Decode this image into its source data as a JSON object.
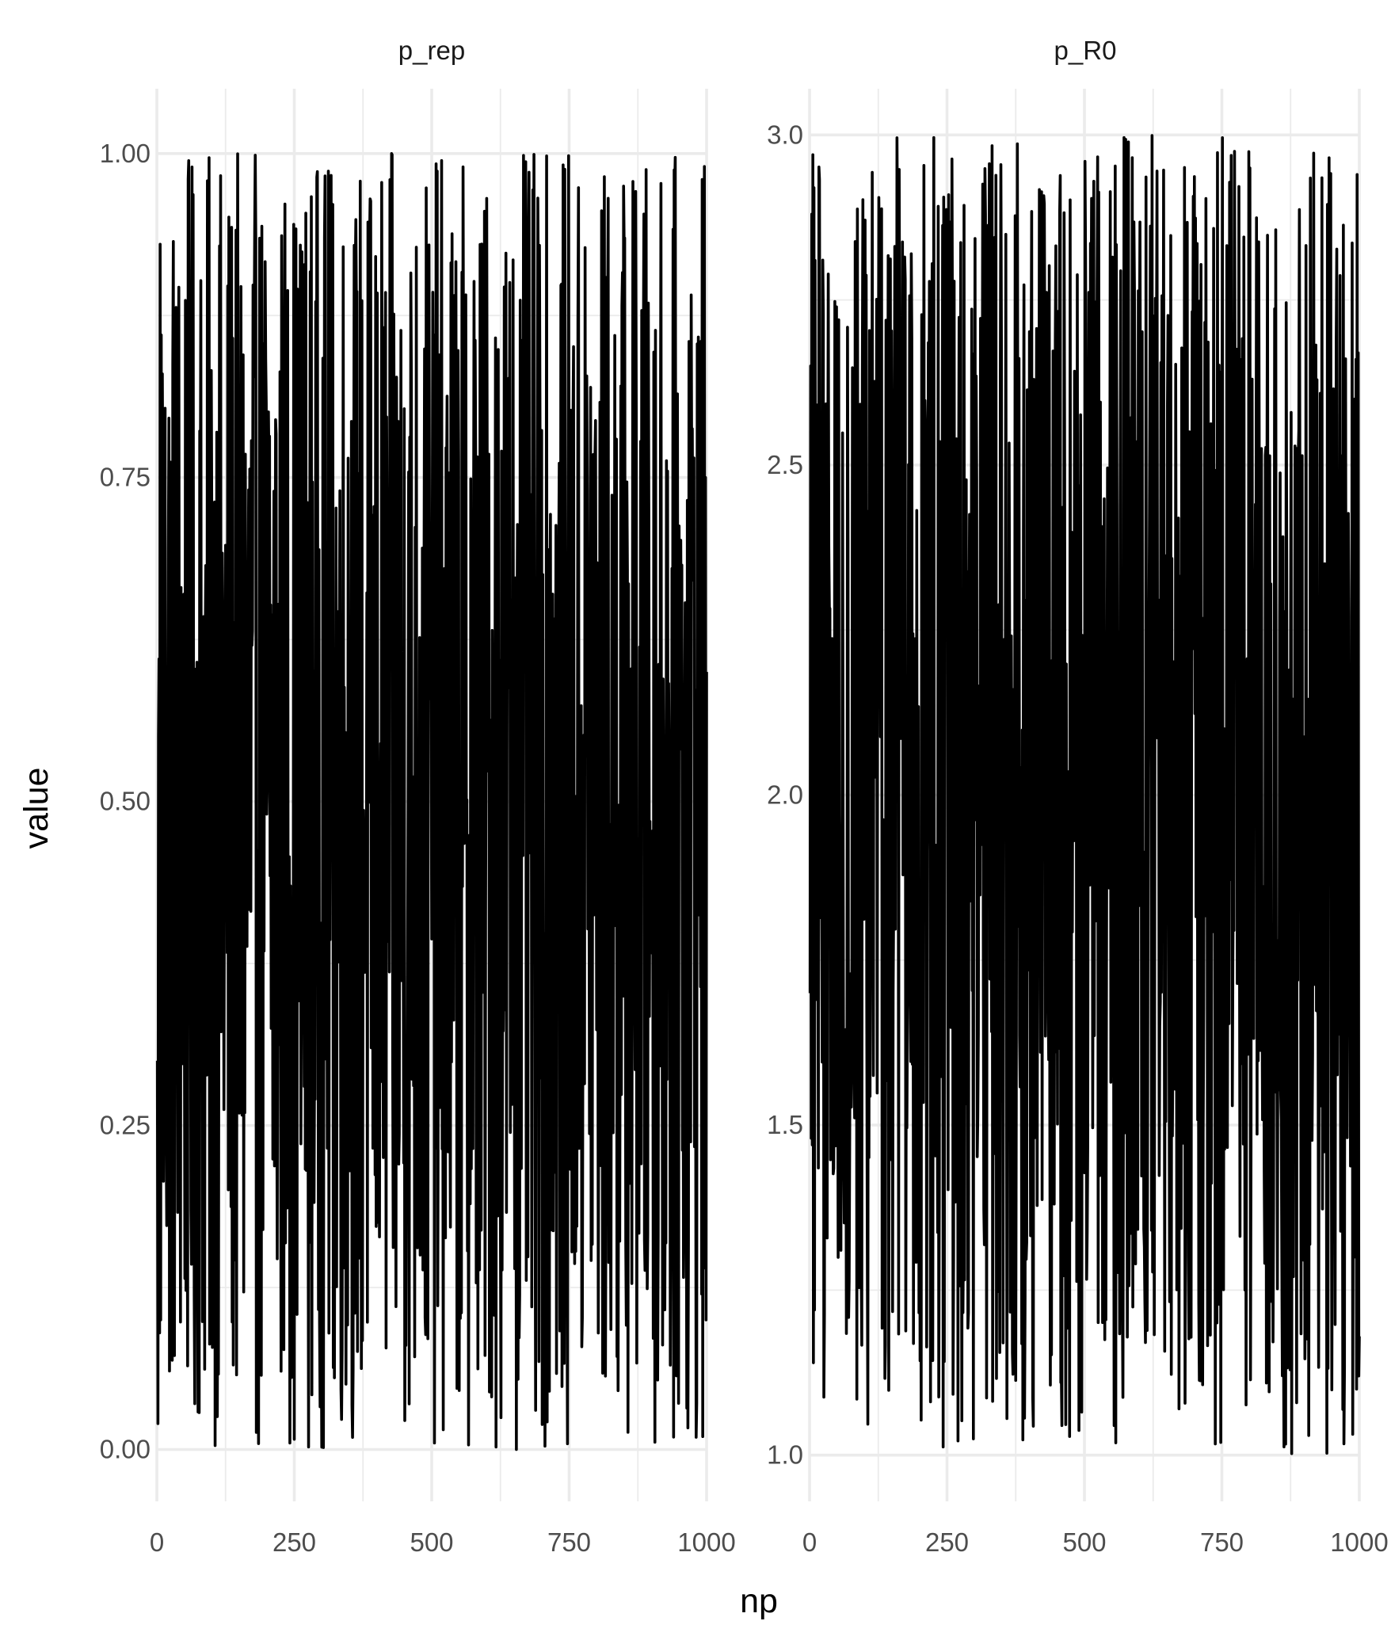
{
  "chart_data": {
    "type": "line",
    "xlabel": "np",
    "ylabel": "value",
    "grid": true,
    "legend": "none",
    "panels": [
      {
        "title": "p_rep",
        "xlim": [
          0,
          1000
        ],
        "ylim": [
          -0.04,
          1.05
        ],
        "xticks": [
          0,
          250,
          500,
          750,
          1000
        ],
        "xtick_labels": [
          "0",
          "250",
          "500",
          "750",
          "1000"
        ],
        "yticks": [
          0,
          0.25,
          0.5,
          0.75,
          1.0
        ],
        "ytick_labels": [
          "0.00",
          "0.25",
          "0.50",
          "0.75",
          "1.00"
        ],
        "series": [
          {
            "x_start": 1,
            "x_end": 1000,
            "n_points": 1000,
            "min": 0.0,
            "max": 1.0,
            "first_values": [
              0.3,
              0.02,
              0.55,
              0.61,
              0.09,
              0.93,
              0.1,
              0.86,
              0.24,
              0.83
            ],
            "last_values": [
              0.98,
              0.01,
              0.9,
              0.27,
              0.99,
              0.14,
              0.75,
              0.1,
              0.6
            ]
          }
        ]
      },
      {
        "title": "p_R0",
        "xlim": [
          0,
          1000
        ],
        "ylim": [
          0.93,
          3.07
        ],
        "xticks": [
          0,
          250,
          500,
          750,
          1000
        ],
        "xtick_labels": [
          "0",
          "250",
          "500",
          "750",
          "1000"
        ],
        "yticks": [
          1.0,
          1.5,
          2.0,
          2.5,
          3.0
        ],
        "ytick_labels": [
          "1.0",
          "1.5",
          "2.0",
          "2.5",
          "3.0"
        ],
        "series": [
          {
            "x_start": 1,
            "x_end": 1000,
            "n_points": 1000,
            "min": 1.0,
            "max": 3.0,
            "first_values": [
              1.7,
              2.65,
              1.48,
              2.88,
              1.47,
              2.97,
              1.14,
              2.92,
              1.22,
              2.81
            ],
            "last_values": [
              2.6,
              1.3,
              2.66,
              1.1,
              2.94,
              1.31,
              2.67,
              1.12,
              1.18
            ]
          }
        ]
      }
    ]
  }
}
